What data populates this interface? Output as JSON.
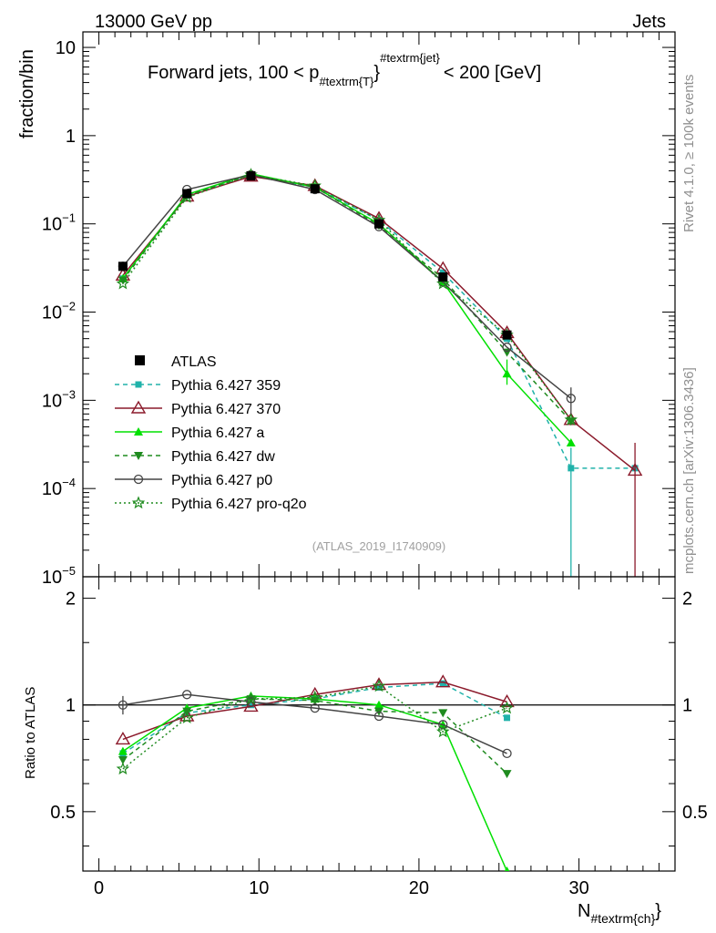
{
  "header": {
    "energy": "13000 GeV pp",
    "category": "Jets",
    "rivet": "Rivet 4.1.0, ≥ 100k events",
    "mcplots": "mcplots.cern.ch [arXiv:1306.3436]"
  },
  "chart_data": {
    "type": "line",
    "title": "Forward jets, 100 < p_{#textrm{T}}^{#textrm{jet}} < 200 [GeV]",
    "title_parts": {
      "prefix": "Forward jets, 100 < p",
      "sub": "#textrm{T}",
      "sup": "#textrm{jet}",
      "suffix": "< 200 [GeV]"
    },
    "analysis_id": "(ATLAS_2019_I1740909)",
    "xlabel": "N",
    "xlabel_sub": "#textrm{ch}",
    "ylabel": "fraction/bin",
    "ratio_ylabel": "Ratio to ATLAS",
    "xlim": [
      -1,
      36
    ],
    "ylim": [
      1e-05,
      15
    ],
    "ratio_ylim": [
      0.34,
      2.3
    ],
    "main_yticks": [
      {
        "v": 10,
        "label": "10",
        "exp": ""
      },
      {
        "v": 1,
        "label": "1",
        "exp": ""
      },
      {
        "v": 0.1,
        "label": "10",
        "exp": "−1"
      },
      {
        "v": 0.01,
        "label": "10",
        "exp": "−2"
      },
      {
        "v": 0.001,
        "label": "10",
        "exp": "−3"
      },
      {
        "v": 0.0001,
        "label": "10",
        "exp": "−4"
      },
      {
        "v": 1e-05,
        "label": "10",
        "exp": "−5"
      }
    ],
    "ratio_yticks": [
      "2",
      "1",
      "0.5"
    ],
    "xticks": [
      "0",
      "10",
      "20",
      "30"
    ],
    "reference": {
      "name": "ATLAS",
      "x": [
        1.5,
        5.5,
        9.5,
        13.5,
        17.5,
        21.5,
        25.5
      ],
      "y": [
        0.033,
        0.22,
        0.35,
        0.25,
        0.1,
        0.025,
        0.0055
      ],
      "err": [
        0.0015,
        0.005,
        0.006,
        0.005,
        0.002,
        0.0008,
        0.0008
      ]
    },
    "series": [
      {
        "name": "Pythia 6.427 359",
        "color": "#20b2aa",
        "dash": "5,4",
        "marker": "square",
        "x": [
          1.5,
          5.5,
          9.5,
          13.5,
          17.5,
          21.5,
          25.5,
          29.5,
          33.5
        ],
        "y": [
          0.024,
          0.21,
          0.35,
          0.26,
          0.11,
          0.028,
          0.005,
          0.00017,
          0.00017
        ],
        "ratio": [
          0.73,
          0.95,
          1.0,
          1.04,
          1.12,
          1.15,
          0.92,
          null,
          null
        ]
      },
      {
        "name": "Pythia 6.427 370",
        "color": "#8b1a2b",
        "dash": "",
        "marker": "triangle-open",
        "x": [
          1.5,
          5.5,
          9.5,
          13.5,
          17.5,
          21.5,
          25.5,
          29.5,
          33.5
        ],
        "y": [
          0.026,
          0.205,
          0.345,
          0.27,
          0.115,
          0.031,
          0.0058,
          0.0006,
          0.00016
        ],
        "ratio": [
          0.8,
          0.93,
          0.99,
          1.07,
          1.14,
          1.16,
          1.02,
          null,
          null
        ]
      },
      {
        "name": "Pythia 6.427 a",
        "color": "#00e000",
        "dash": "",
        "marker": "triangle",
        "x": [
          1.5,
          5.5,
          9.5,
          13.5,
          17.5,
          21.5,
          25.5,
          29.5
        ],
        "y": [
          0.024,
          0.215,
          0.37,
          0.26,
          0.1,
          0.022,
          0.002,
          0.00033
        ],
        "ratio": [
          0.74,
          0.98,
          1.06,
          1.04,
          1.0,
          0.88,
          0.34,
          null
        ]
      },
      {
        "name": "Pythia 6.427 dw",
        "color": "#1f8b1f",
        "dash": "5,4",
        "marker": "triangle-down",
        "x": [
          1.5,
          5.5,
          9.5,
          13.5,
          17.5,
          21.5,
          25.5,
          29.5
        ],
        "y": [
          0.023,
          0.21,
          0.36,
          0.26,
          0.096,
          0.024,
          0.0035,
          0.00058
        ],
        "ratio": [
          0.7,
          0.96,
          1.04,
          1.03,
          0.96,
          0.95,
          0.64,
          null
        ]
      },
      {
        "name": "Pythia 6.427 p0",
        "color": "#444444",
        "dash": "",
        "marker": "circle-open",
        "x": [
          1.5,
          5.5,
          9.5,
          13.5,
          17.5,
          21.5,
          25.5,
          29.5
        ],
        "y": [
          0.033,
          0.245,
          0.36,
          0.245,
          0.093,
          0.022,
          0.004,
          0.00105
        ],
        "ratio": [
          1.0,
          1.07,
          1.02,
          0.98,
          0.93,
          0.88,
          0.73,
          null
        ]
      },
      {
        "name": "Pythia 6.427 pro-q2o",
        "color": "#1f8b1f",
        "dash": "2,3",
        "marker": "star",
        "x": [
          1.5,
          5.5,
          9.5,
          13.5,
          17.5,
          21.5,
          25.5,
          29.5
        ],
        "y": [
          0.021,
          0.2,
          0.36,
          0.27,
          0.11,
          0.021,
          0.0055,
          0.0006
        ],
        "ratio": [
          0.66,
          0.92,
          1.04,
          1.05,
          1.13,
          0.84,
          0.98,
          null
        ]
      }
    ]
  }
}
